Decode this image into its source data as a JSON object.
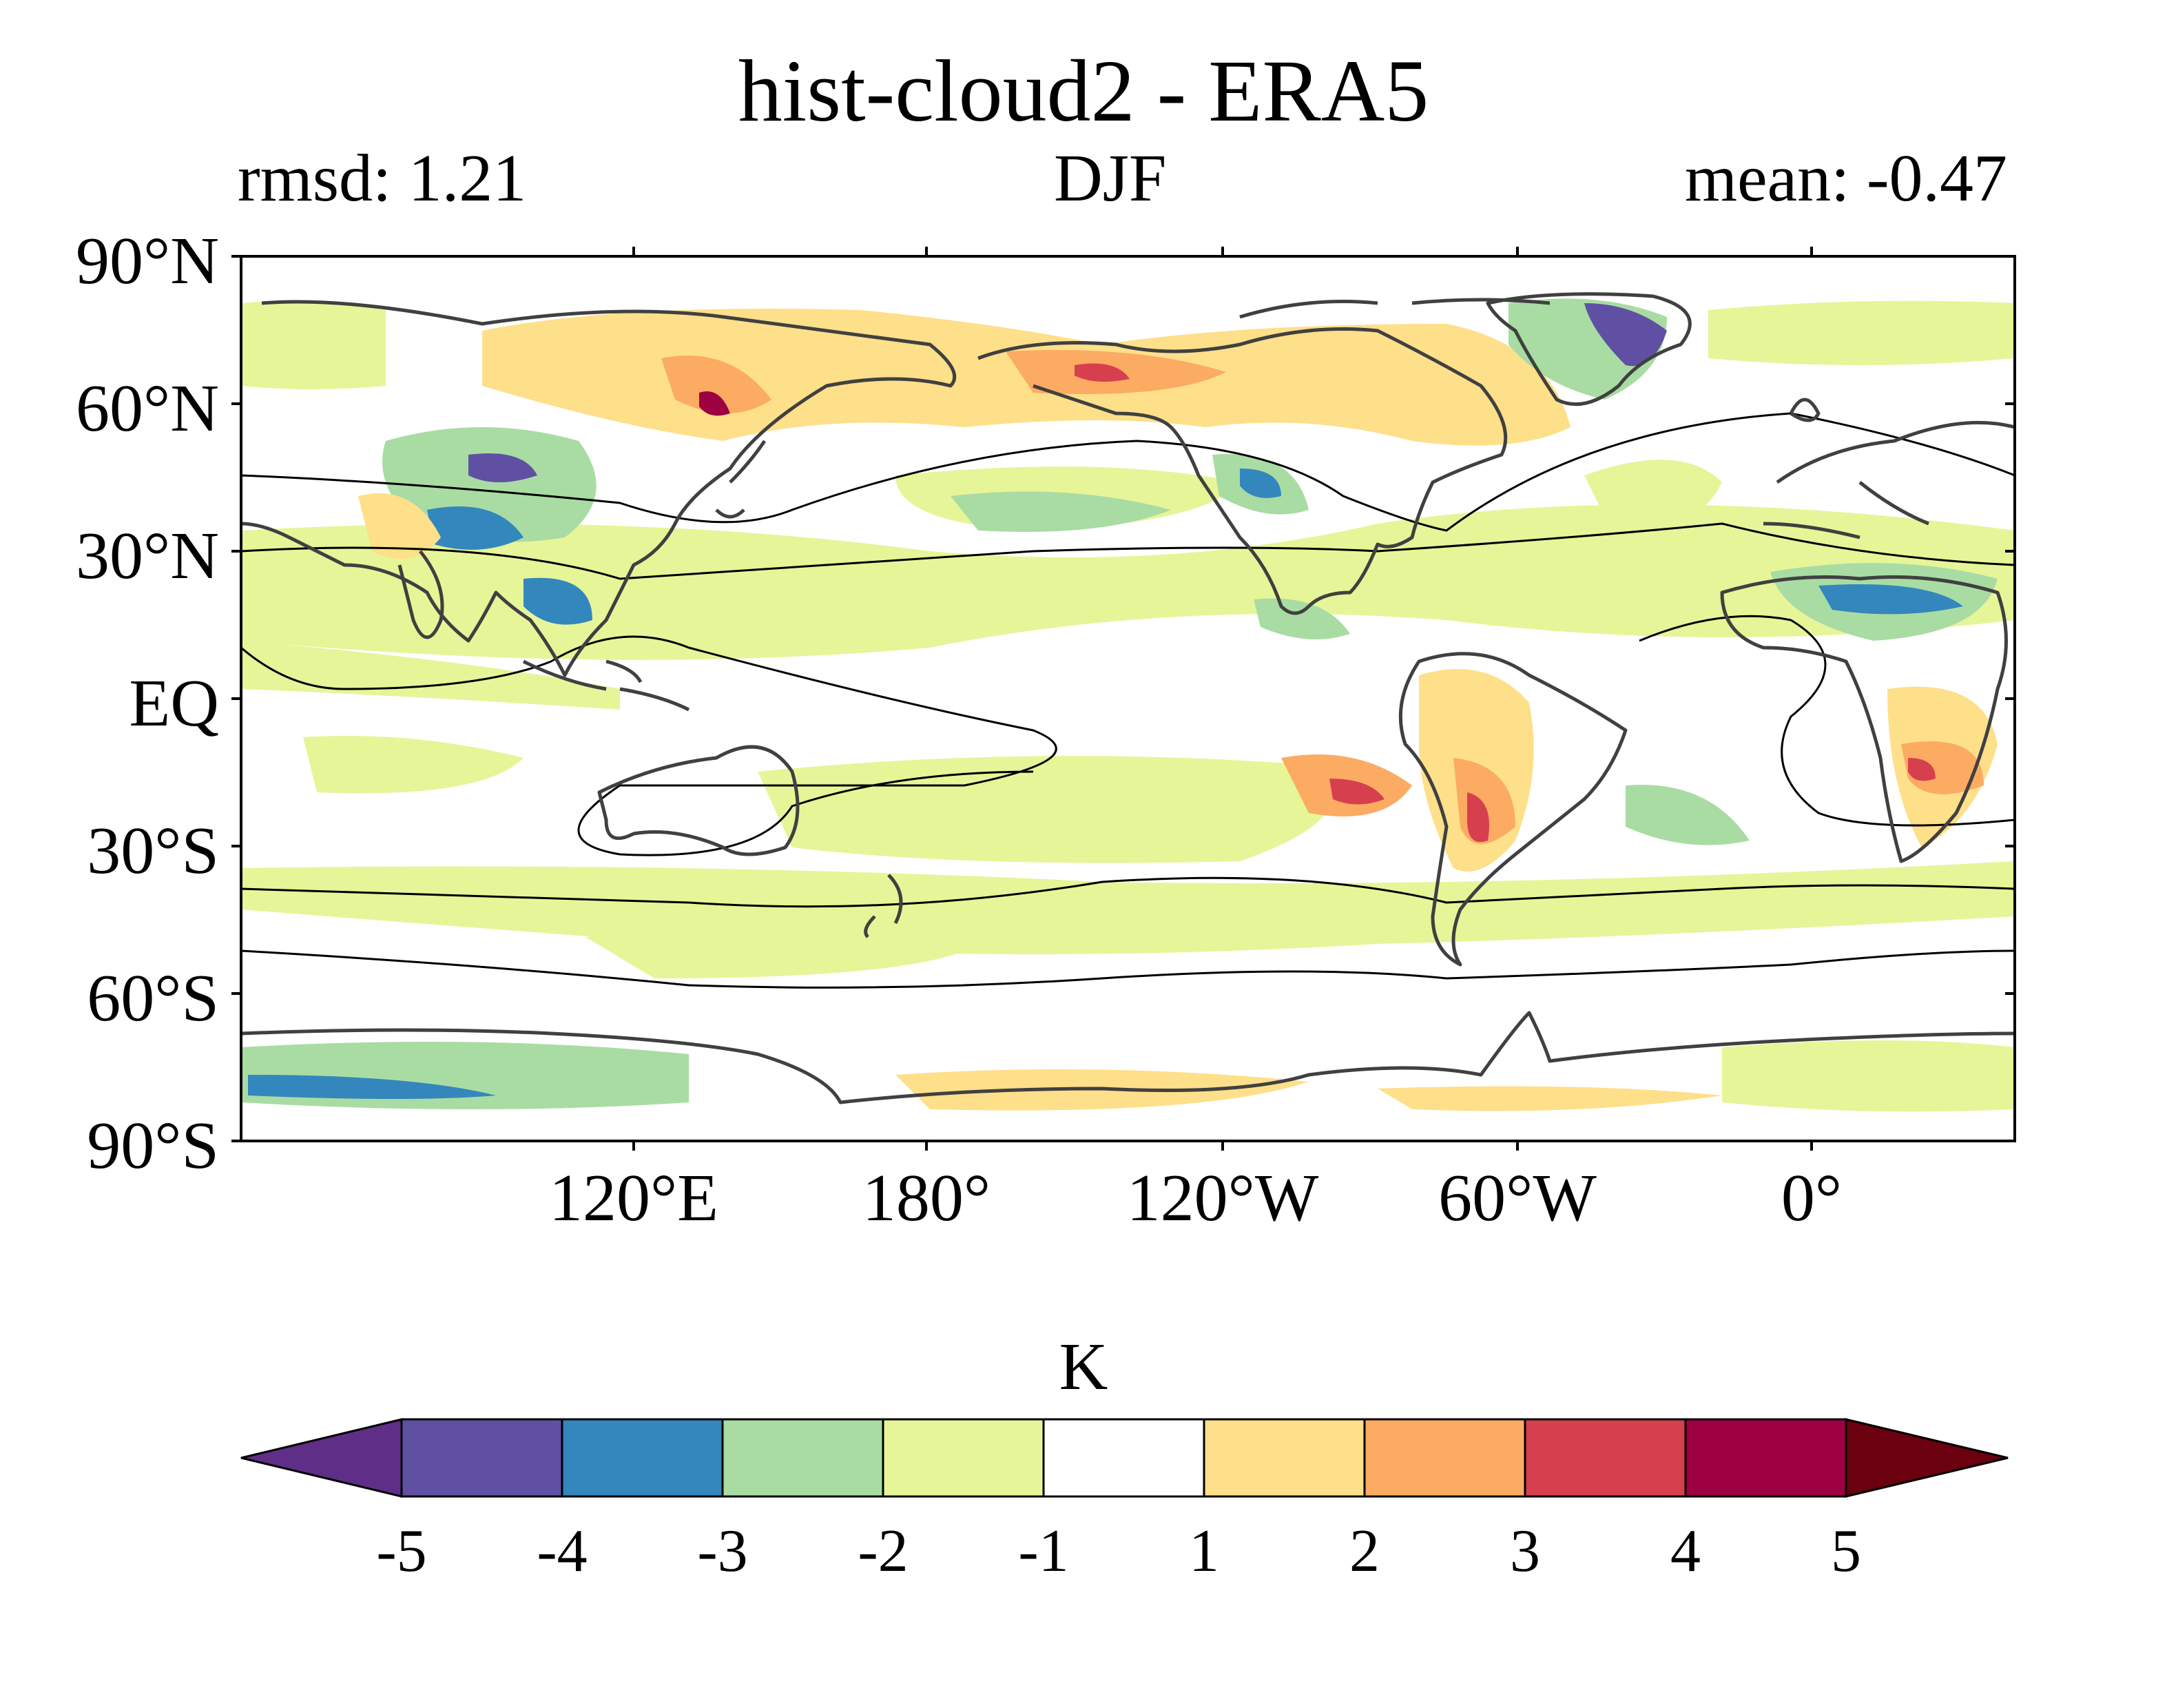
{
  "title": "hist-cloud2 - ERA5",
  "left_stat": "rmsd: 1.21",
  "season": "DJF",
  "right_stat": "mean: -0.47",
  "map": {
    "projection": "equirectangular, centered near 180°",
    "lat_labels": [
      "90°N",
      "60°N",
      "30°N",
      "EQ",
      "30°S",
      "60°S",
      "90°S"
    ],
    "lon_labels": [
      "120°E",
      "180°",
      "120°W",
      "60°W",
      "0°"
    ],
    "field": "near-surface temperature difference (model minus reanalysis)",
    "features": [
      {
        "region": "Central Asia / Tibet",
        "sign": "mixed",
        "note": "strong cold spots (-4 to -5) near Tibet with warm patches"
      },
      {
        "region": "Siberia / Alaska / Canada high latitudes",
        "sign": "warm",
        "note": "+1 to +4"
      },
      {
        "region": "Greenland",
        "sign": "cold",
        "note": "-3 to -5"
      },
      {
        "region": "North Africa / Sahel",
        "sign": "cold",
        "note": "-2 to -4"
      },
      {
        "region": "South America (Andes / Argentina)",
        "sign": "warm",
        "note": "+2 to +4"
      },
      {
        "region": "Southern Africa",
        "sign": "warm",
        "note": "+2 to +3"
      },
      {
        "region": "Tropical and subtropical oceans",
        "sign": "slightly cold",
        "note": "-1 to -2"
      },
      {
        "region": "Antarctica",
        "sign": "mixed",
        "note": "cold in East, warm near Ross region"
      }
    ]
  },
  "colorbar": {
    "unit": "K",
    "tick_labels": [
      "-5",
      "-4",
      "-3",
      "-2",
      "-1",
      "1",
      "2",
      "3",
      "4",
      "5"
    ],
    "colors": [
      "#5f2e86",
      "#6050a4",
      "#3487bd",
      "#a9dca3",
      "#e6f598",
      "#ffffff",
      "#fedf8a",
      "#fcab62",
      "#d6404e",
      "#9e0142",
      "#6b000e"
    ]
  }
}
